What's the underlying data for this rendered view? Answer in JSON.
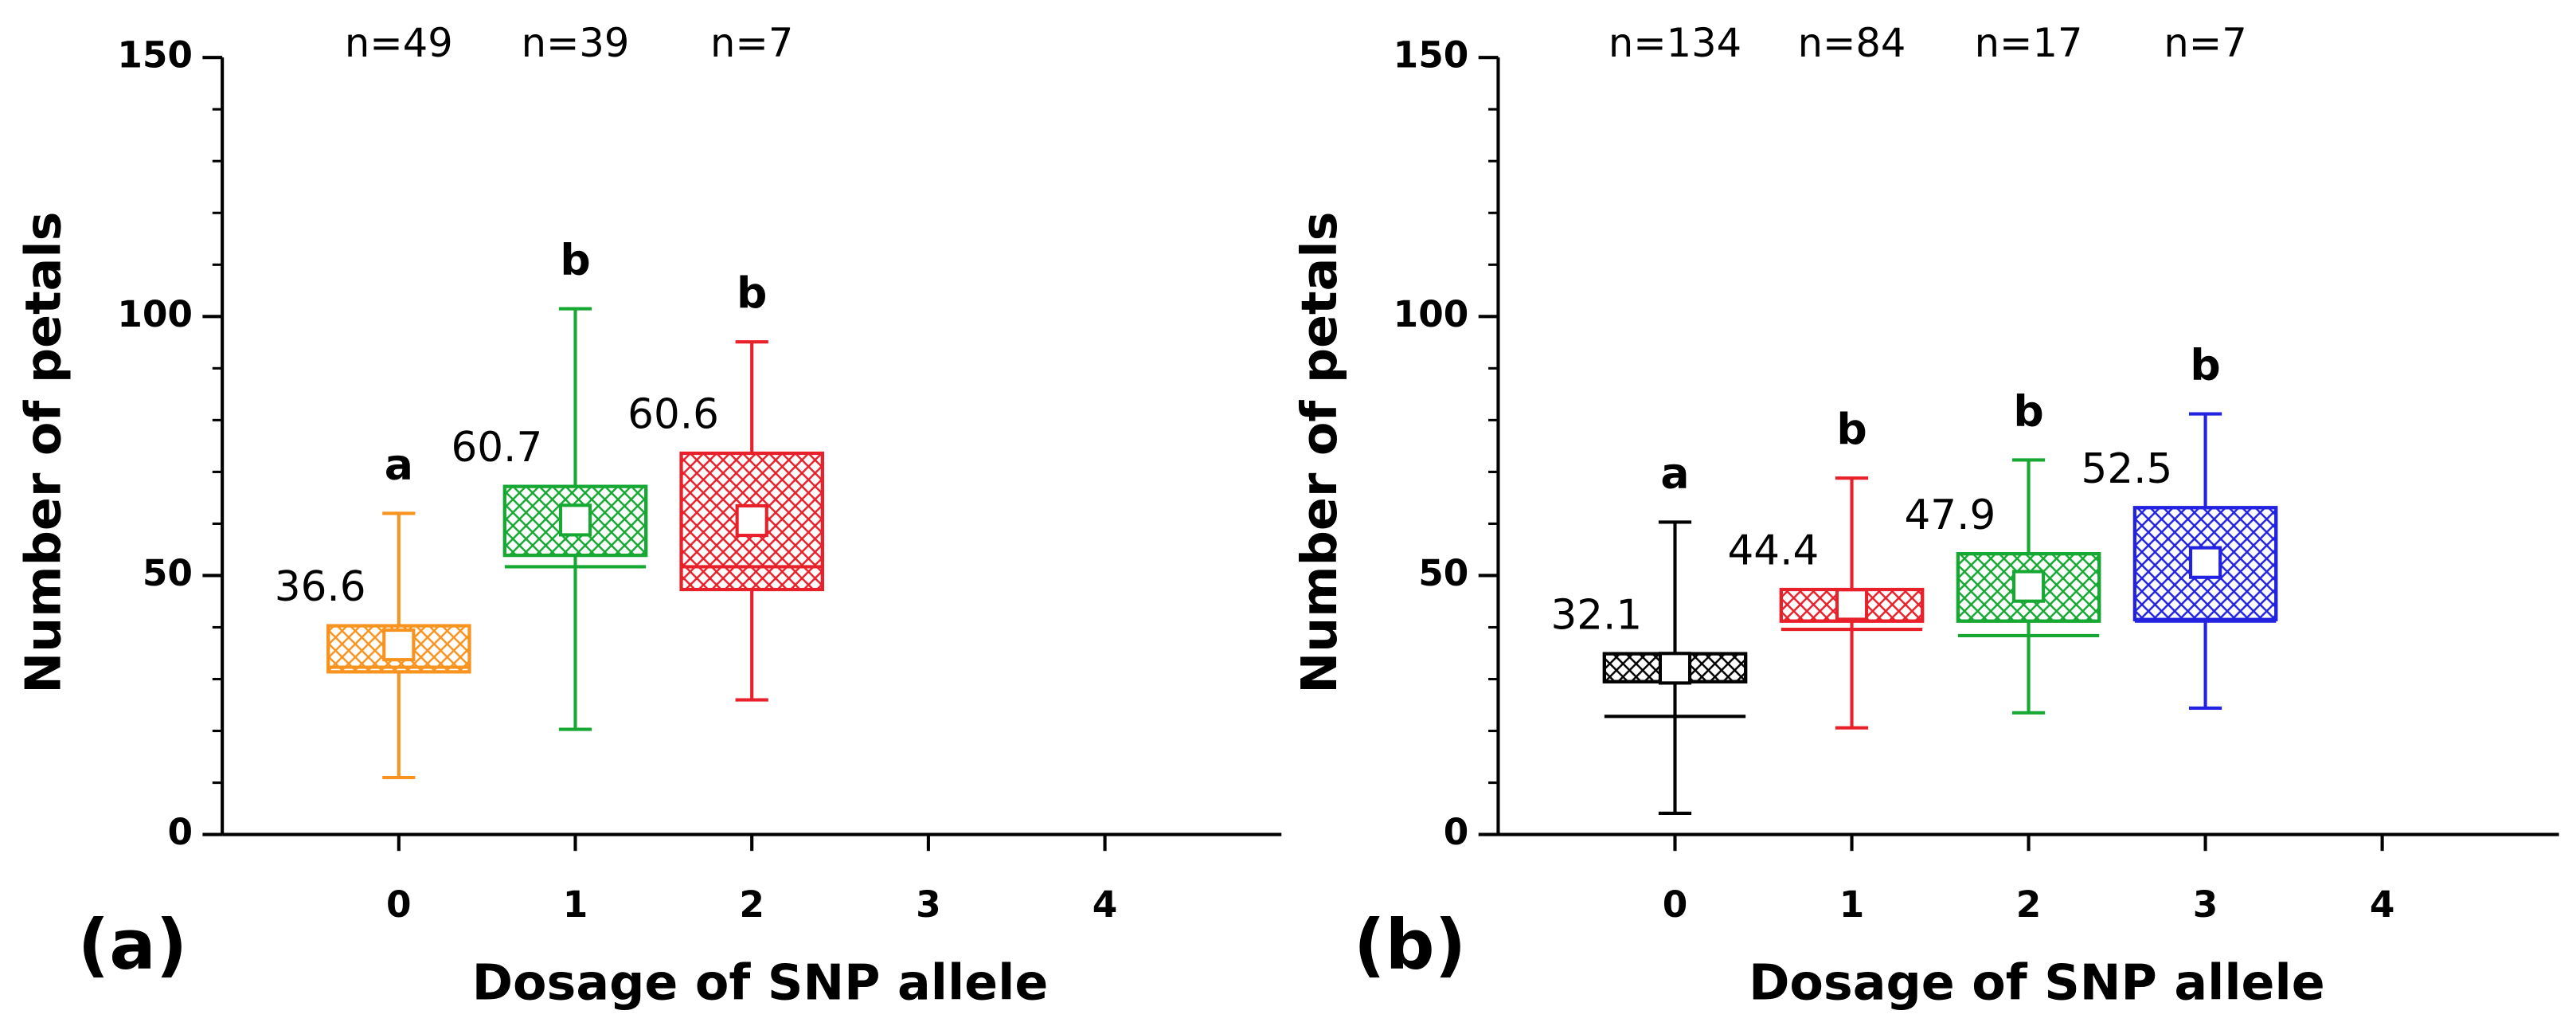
{
  "chart_data": [
    {
      "type": "box",
      "panel_label": "(a)",
      "xlabel": "Dosage of SNP allele",
      "ylabel": "Number of petals",
      "xlim": [
        -1,
        5
      ],
      "xticks": [
        0,
        1,
        2,
        3,
        4
      ],
      "ylim": [
        0,
        150
      ],
      "yticks": [
        0,
        50,
        100,
        150
      ],
      "boxes": [
        {
          "x": 0,
          "color": "#f7931e",
          "n_label": "n=49",
          "letter": "a",
          "whisker_low": 11,
          "box_low": 31.4,
          "line": 32.3,
          "box_high": 40.3,
          "whisker_high": 62,
          "mean": 36.6
        },
        {
          "x": 1,
          "color": "#16a832",
          "n_label": "n=39",
          "letter": "b",
          "whisker_low": 20.3,
          "box_low": 53.9,
          "line": 51.7,
          "box_high": 67.2,
          "whisker_high": 101.5,
          "mean": 60.7
        },
        {
          "x": 2,
          "color": "#e8202a",
          "n_label": "n=7",
          "letter": "b",
          "whisker_low": 26,
          "box_low": 47.3,
          "line": 51.7,
          "box_high": 73.6,
          "whisker_high": 95.1,
          "mean": 60.6
        }
      ]
    },
    {
      "type": "box",
      "panel_label": "(b)",
      "xlabel": "Dosage of SNP allele",
      "ylabel": "Number of petals",
      "xlim": [
        -1,
        5
      ],
      "xticks": [
        0,
        1,
        2,
        3,
        4
      ],
      "ylim": [
        0,
        150
      ],
      "yticks": [
        0,
        50,
        100,
        150
      ],
      "boxes": [
        {
          "x": 0,
          "color": "#000000",
          "n_label": "n=134",
          "letter": "a",
          "whisker_low": 4.1,
          "box_low": 29.5,
          "line": 22.8,
          "box_high": 34.9,
          "whisker_high": 60.3,
          "mean": 32.1
        },
        {
          "x": 1,
          "color": "#e8202a",
          "n_label": "n=84",
          "letter": "b",
          "whisker_low": 20.6,
          "box_low": 41.2,
          "line": 39.6,
          "box_high": 47.3,
          "whisker_high": 68.8,
          "mean": 44.4
        },
        {
          "x": 2,
          "color": "#16a832",
          "n_label": "n=17",
          "letter": "b",
          "whisker_low": 23.5,
          "box_low": 41.2,
          "line": 38.4,
          "box_high": 54.2,
          "whisker_high": 72.3,
          "mean": 47.9
        },
        {
          "x": 3,
          "color": "#2222e0",
          "n_label": "n=7",
          "letter": "b",
          "whisker_low": 24.4,
          "box_low": 41.5,
          "line": 41.2,
          "box_high": 63.1,
          "whisker_high": 81.2,
          "mean": 52.5
        }
      ]
    }
  ]
}
